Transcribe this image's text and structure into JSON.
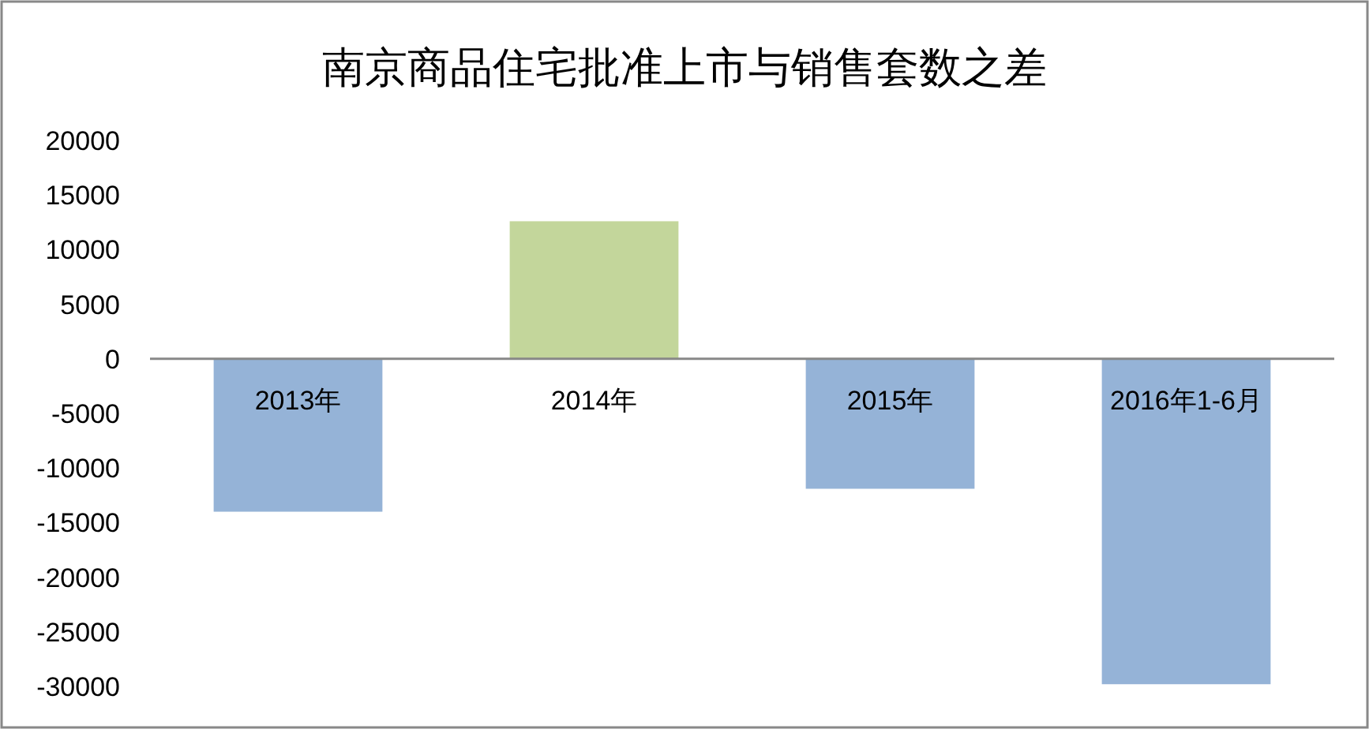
{
  "chart_data": {
    "type": "bar",
    "title": "南京商品住宅批准上市与销售套数之差",
    "categories": [
      "2013年",
      "2014年",
      "2015年",
      "2016年1-6月"
    ],
    "values": [
      -14000,
      12600,
      -11900,
      -29800
    ],
    "colors": [
      "#95b3d7",
      "#c3d69b",
      "#95b3d7",
      "#95b3d7"
    ],
    "ylim": [
      -30000,
      20000
    ],
    "yticks": [
      -30000,
      -25000,
      -20000,
      -15000,
      -10000,
      -5000,
      0,
      5000,
      10000,
      15000,
      20000
    ],
    "grid": false
  }
}
